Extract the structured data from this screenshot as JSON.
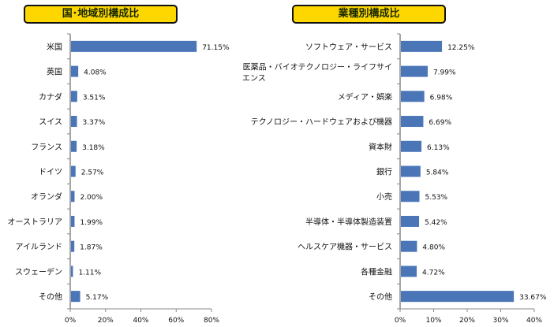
{
  "chart_data": [
    {
      "type": "bar",
      "orientation": "horizontal",
      "title": "国･地域別構成比",
      "categories": [
        "米国",
        "英国",
        "カナダ",
        "スイス",
        "フランス",
        "ドイツ",
        "オランダ",
        "オーストラリア",
        "アイルランド",
        "スウェーデン",
        "その他"
      ],
      "values": [
        71.15,
        4.08,
        3.51,
        3.37,
        3.18,
        2.57,
        2.0,
        1.99,
        1.87,
        1.11,
        5.17
      ],
      "labels": [
        "71.15%",
        "4.08%",
        "3.51%",
        "3.37%",
        "3.18%",
        "2.57%",
        "2.00%",
        "1.99%",
        "1.87%",
        "1.11%",
        "5.17%"
      ],
      "xlim": [
        0,
        80
      ],
      "ticks": [
        "0%",
        "20%",
        "40%",
        "60%",
        "80%"
      ],
      "tick_values": [
        0,
        20,
        40,
        60,
        80
      ],
      "color": "#4a76b8"
    },
    {
      "type": "bar",
      "orientation": "horizontal",
      "title": "業種別構成比",
      "categories": [
        "ソフトウェア・サービス",
        "医薬品・バイオテクノロジー・ライフサイエンス",
        "メディア・娯楽",
        "テクノロジー・ハードウェアおよび機器",
        "資本財",
        "銀行",
        "小売",
        "半導体・半導体製造装置",
        "ヘルスケア機器・サービス",
        "各種金融",
        "その他"
      ],
      "values": [
        12.25,
        7.99,
        6.98,
        6.69,
        6.13,
        5.84,
        5.53,
        5.42,
        4.8,
        4.72,
        33.67
      ],
      "labels": [
        "12.25%",
        "7.99%",
        "6.98%",
        "6.69%",
        "6.13%",
        "5.84%",
        "5.53%",
        "5.42%",
        "4.80%",
        "4.72%",
        "33.67%"
      ],
      "xlim": [
        0,
        40
      ],
      "ticks": [
        "0%",
        "10%",
        "20%",
        "30%",
        "40%"
      ],
      "tick_values": [
        0,
        10,
        20,
        30,
        40
      ],
      "color": "#4a76b8"
    }
  ]
}
